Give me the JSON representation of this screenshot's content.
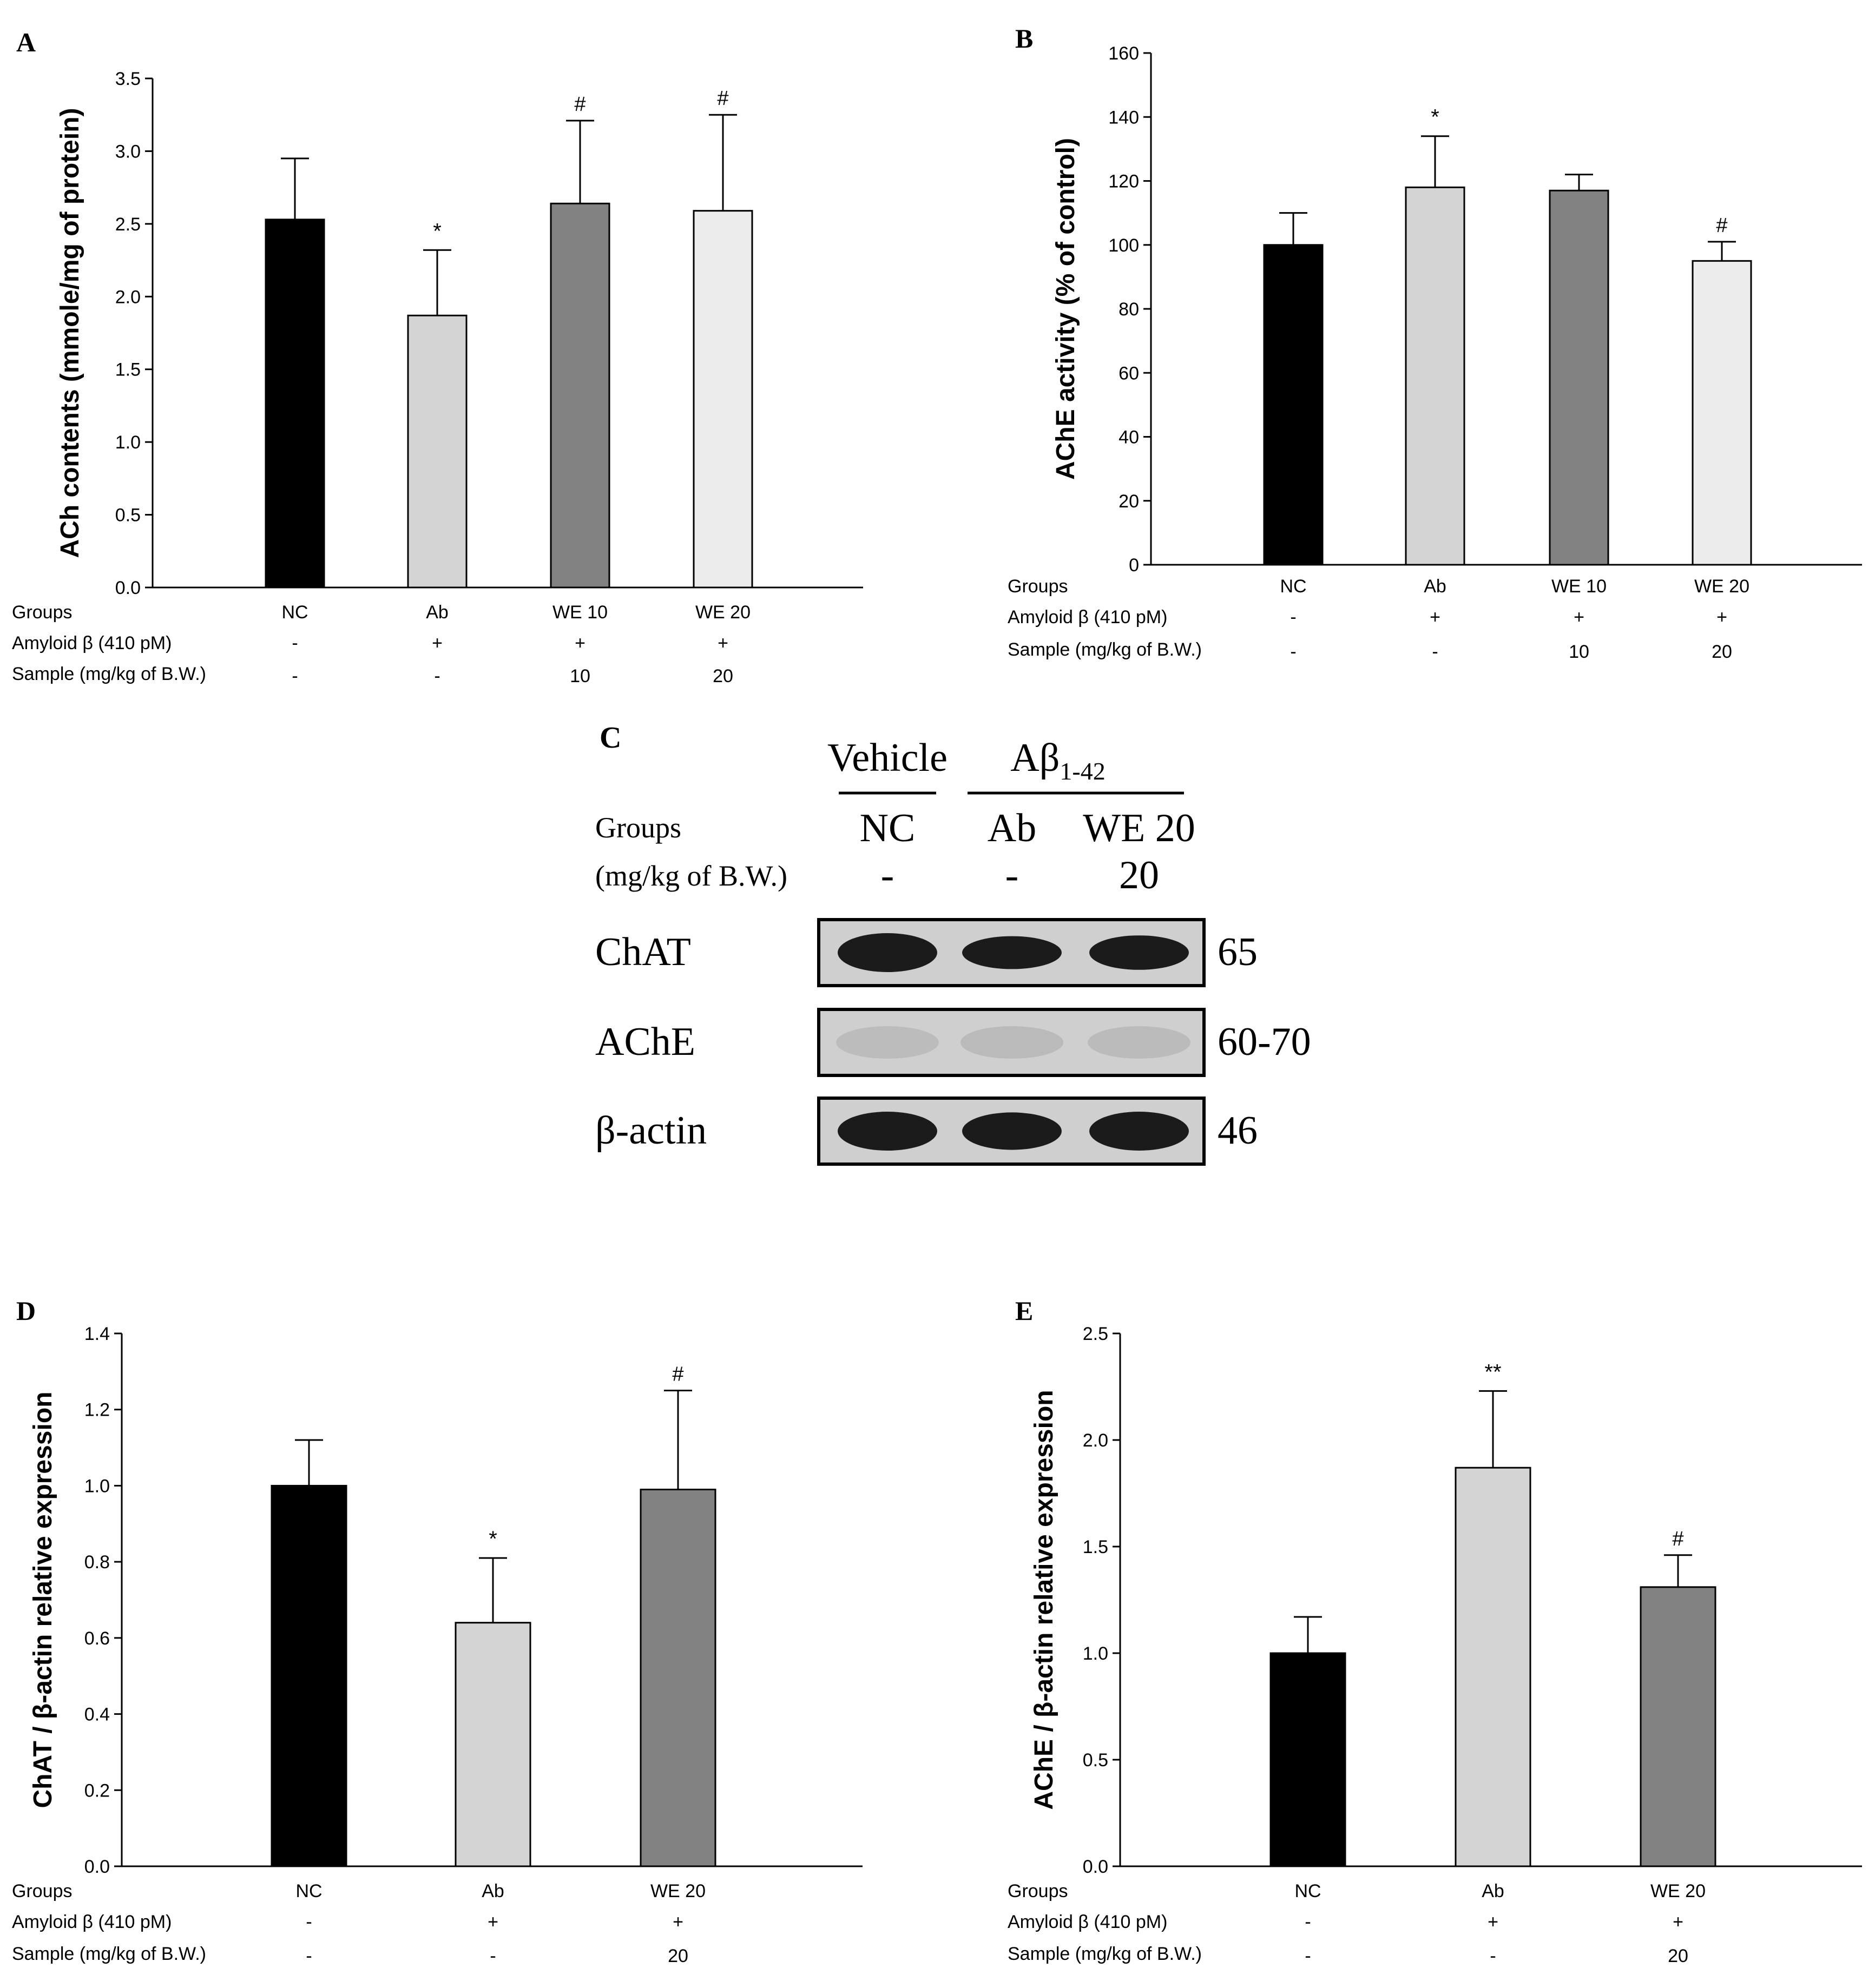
{
  "colors": {
    "black": "#000000",
    "light": "#d4d4d4",
    "dark": "#828282",
    "lighter": "#ececec",
    "blot_bg": "#cfcfcf",
    "band": "#111111",
    "faint_band": "#b8b8b8"
  },
  "row_labels": {
    "groups": "Groups",
    "amyloid": "Amyloid β (410 pM)",
    "sample": "Sample (mg/kg of B.W.)"
  },
  "chart_data": [
    {
      "id": "A",
      "panel_label": "A",
      "type": "bar",
      "ylabel": "ACh contents (mmole/mg of protein)",
      "ylim": [
        0,
        3.5
      ],
      "yticks": [
        "0.0",
        "0.5",
        "1.0",
        "1.5",
        "2.0",
        "2.5",
        "3.0",
        "3.5"
      ],
      "categories": [
        "NC",
        "Ab",
        "WE 10",
        "WE 20"
      ],
      "values": [
        2.53,
        1.87,
        2.64,
        2.59
      ],
      "errors": [
        0.42,
        0.45,
        0.57,
        0.66
      ],
      "significance": [
        "",
        "*",
        "#",
        "#"
      ],
      "bar_colors": [
        "black",
        "light",
        "dark",
        "lighter"
      ],
      "amyloid": [
        "-",
        "+",
        "+",
        "+"
      ],
      "sample": [
        "-",
        "-",
        "10",
        "20"
      ]
    },
    {
      "id": "B",
      "panel_label": "B",
      "type": "bar",
      "ylabel": "AChE activity (% of control)",
      "ylim": [
        0,
        160
      ],
      "yticks": [
        "0",
        "20",
        "40",
        "60",
        "80",
        "100",
        "120",
        "140",
        "160"
      ],
      "categories": [
        "NC",
        "Ab",
        "WE 10",
        "WE 20"
      ],
      "values": [
        100,
        118,
        117,
        95
      ],
      "errors": [
        10,
        16,
        5,
        6
      ],
      "significance": [
        "",
        "*",
        "",
        "#"
      ],
      "bar_colors": [
        "black",
        "light",
        "dark",
        "lighter"
      ],
      "amyloid": [
        "-",
        "+",
        "+",
        "+"
      ],
      "sample": [
        "-",
        "-",
        "10",
        "20"
      ]
    },
    {
      "id": "D",
      "panel_label": "D",
      "type": "bar",
      "ylabel": "ChAT / β-actin relative expression",
      "ylim": [
        0,
        1.4
      ],
      "yticks": [
        "0.0",
        "0.2",
        "0.4",
        "0.6",
        "0.8",
        "1.0",
        "1.2",
        "1.4"
      ],
      "categories": [
        "NC",
        "Ab",
        "WE 20"
      ],
      "values": [
        1.0,
        0.64,
        0.99
      ],
      "errors": [
        0.12,
        0.17,
        0.26
      ],
      "significance": [
        "",
        "*",
        "#"
      ],
      "bar_colors": [
        "black",
        "light",
        "dark"
      ],
      "amyloid": [
        "-",
        "+",
        "+"
      ],
      "sample": [
        "-",
        "-",
        "20"
      ]
    },
    {
      "id": "E",
      "panel_label": "E",
      "type": "bar",
      "ylabel": "AChE / β-actin relative expression",
      "ylim": [
        0,
        2.5
      ],
      "yticks": [
        "0.0",
        "0.5",
        "1.0",
        "1.5",
        "2.0",
        "2.5"
      ],
      "categories": [
        "NC",
        "Ab",
        "WE 20"
      ],
      "values": [
        1.0,
        1.87,
        1.31
      ],
      "errors": [
        0.17,
        0.36,
        0.15
      ],
      "significance": [
        "",
        "**",
        "#"
      ],
      "bar_colors": [
        "black",
        "light",
        "dark"
      ],
      "amyloid": [
        "-",
        "+",
        "+"
      ],
      "sample": [
        "-",
        "-",
        "20"
      ]
    }
  ],
  "blot": {
    "panel_label": "C",
    "vehicle_label": "Vehicle",
    "treatment_label": "Aβ",
    "treatment_sub": "1-42",
    "groups_label": "Groups",
    "dose_label": "(mg/kg  of B.W.)",
    "lanes": [
      "NC",
      "Ab",
      "WE 20"
    ],
    "doses": [
      "-",
      "-",
      "20"
    ],
    "proteins": [
      {
        "name": "ChAT",
        "kda": "65",
        "intensity": [
          1.0,
          0.8,
          0.85
        ]
      },
      {
        "name": "AChE",
        "kda": "60-70",
        "intensity": [
          0.15,
          0.25,
          0.2
        ]
      },
      {
        "name": "β-actin",
        "kda": "46",
        "intensity": [
          1.0,
          0.95,
          1.0
        ]
      }
    ]
  }
}
